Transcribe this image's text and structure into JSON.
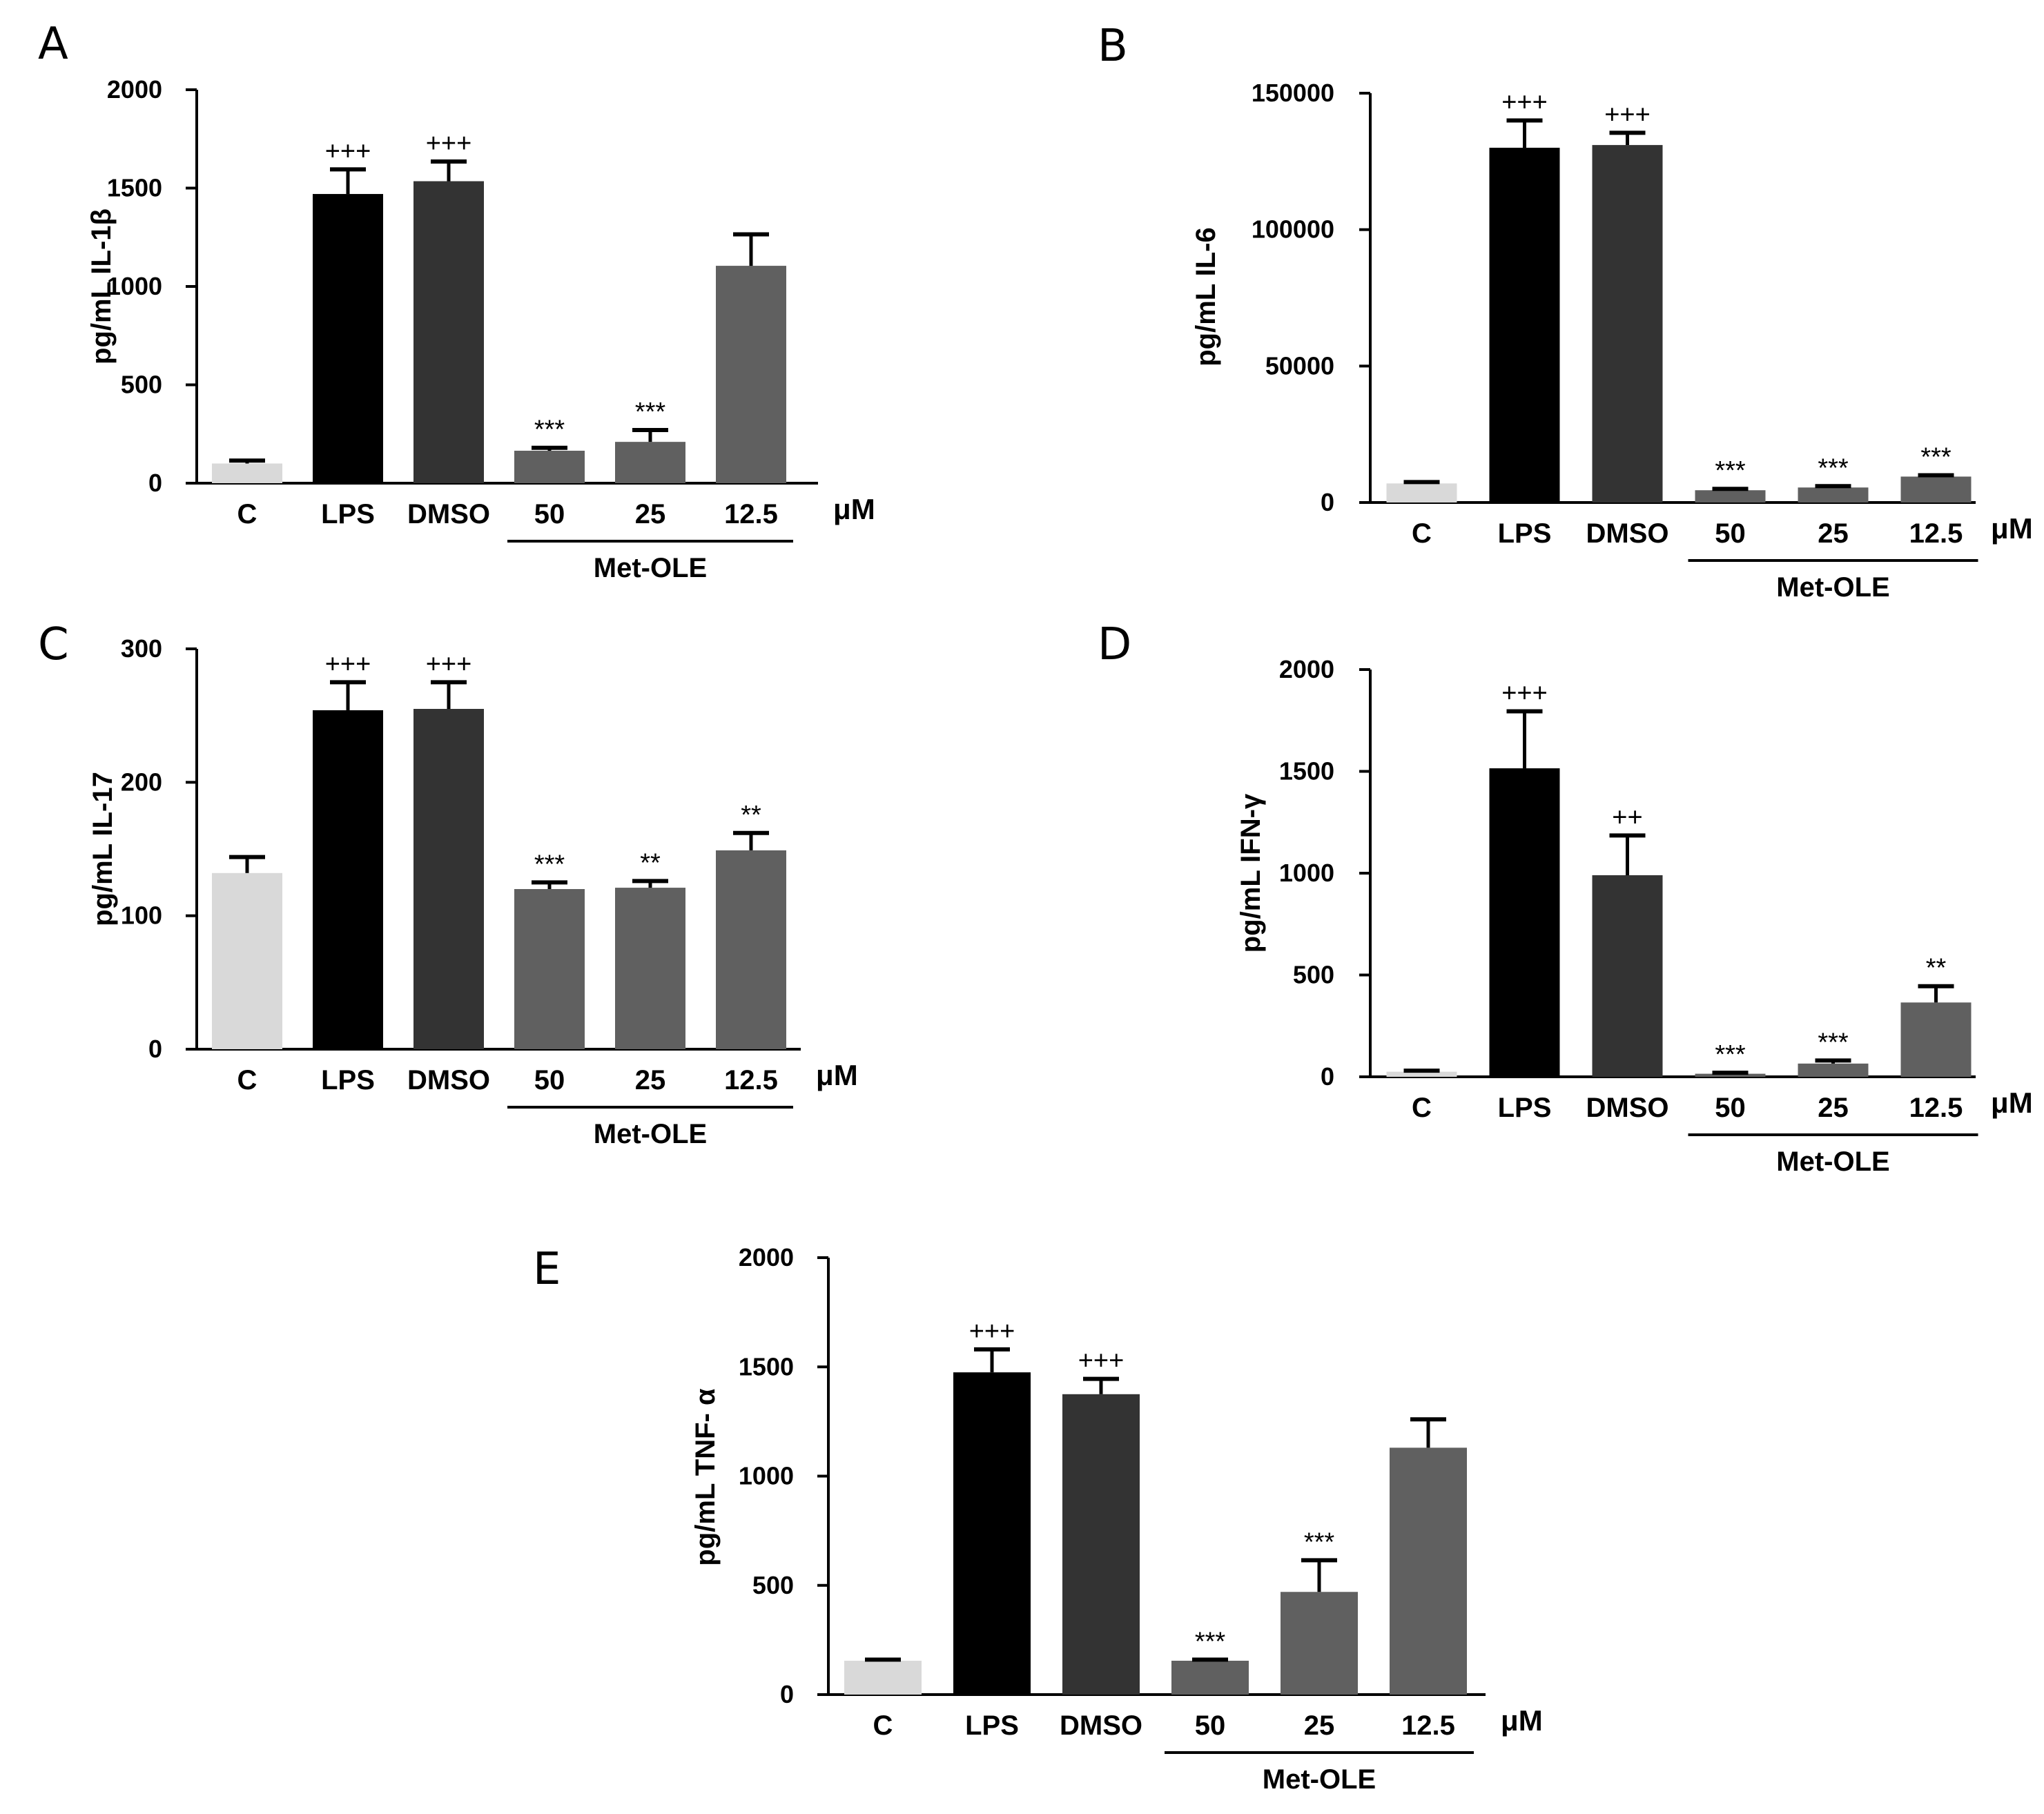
{
  "colors": {
    "control": "#d9d9d9",
    "lps": "#000000",
    "dmso": "#333333",
    "treatment": "#606060",
    "axis": "#000000"
  },
  "chart_data": [
    {
      "panel": "A",
      "type": "bar",
      "categories": [
        "C",
        "LPS",
        "DMSO",
        "50",
        "25",
        "12.5"
      ],
      "values": [
        100,
        1470,
        1535,
        165,
        210,
        1105
      ],
      "errors": [
        15,
        125,
        100,
        15,
        60,
        160
      ],
      "annotations": [
        "",
        "+++",
        "+++",
        "***",
        "***",
        ""
      ],
      "ylabel": "pg/mL IL-1β",
      "yticks": [
        0,
        500,
        1000,
        1500,
        2000
      ],
      "ylim": [
        0,
        2000
      ],
      "unit": "μM",
      "group_label": "Met-OLE"
    },
    {
      "panel": "B",
      "type": "bar",
      "categories": [
        "C",
        "LPS",
        "DMSO",
        "50",
        "25",
        "12.5"
      ],
      "values": [
        7000,
        130000,
        131000,
        4500,
        5500,
        9500
      ],
      "errors": [
        500,
        10000,
        4500,
        500,
        500,
        500
      ],
      "annotations": [
        "",
        "+++",
        "+++",
        "***",
        "***",
        "***"
      ],
      "ylabel": "pg/mL IL-6",
      "yticks": [
        0,
        50000,
        100000,
        150000
      ],
      "ylim": [
        0,
        150000
      ],
      "unit": "μM",
      "group_label": "Met-OLE"
    },
    {
      "panel": "C",
      "type": "bar",
      "categories": [
        "C",
        "LPS",
        "DMSO",
        "50",
        "25",
        "12.5"
      ],
      "values": [
        132,
        254,
        255,
        120,
        121,
        149
      ],
      "errors": [
        12,
        21,
        20,
        5,
        5,
        13
      ],
      "annotations": [
        "",
        "+++",
        "+++",
        "***",
        "**",
        "**"
      ],
      "ylabel": "pg/mL IL-17",
      "yticks": [
        0,
        100,
        200,
        300
      ],
      "ylim": [
        0,
        300
      ],
      "unit": "μM",
      "group_label": "Met-OLE"
    },
    {
      "panel": "D",
      "type": "bar",
      "categories": [
        "C",
        "LPS",
        "DMSO",
        "50",
        "25",
        "12.5"
      ],
      "values": [
        25,
        1515,
        990,
        15,
        65,
        365
      ],
      "errors": [
        5,
        280,
        195,
        5,
        15,
        80
      ],
      "annotations": [
        "",
        "+++",
        "++",
        "***",
        "***",
        "**"
      ],
      "ylabel": "pg/mL IFN-γ",
      "yticks": [
        0,
        500,
        1000,
        1500,
        2000
      ],
      "ylim": [
        0,
        2000
      ],
      "unit": "μM",
      "group_label": "Met-OLE"
    },
    {
      "panel": "E",
      "type": "bar",
      "categories": [
        "C",
        "LPS",
        "DMSO",
        "50",
        "25",
        "12.5"
      ],
      "values": [
        155,
        1475,
        1375,
        155,
        470,
        1130
      ],
      "errors": [
        5,
        105,
        70,
        5,
        145,
        130
      ],
      "annotations": [
        "",
        "+++",
        "+++",
        "***",
        "***",
        ""
      ],
      "ylabel": "pg/mL TNF- α",
      "yticks": [
        0,
        500,
        1000,
        1500,
        2000
      ],
      "ylim": [
        0,
        2000
      ],
      "unit": "μM",
      "group_label": "Met-OLE"
    }
  ]
}
